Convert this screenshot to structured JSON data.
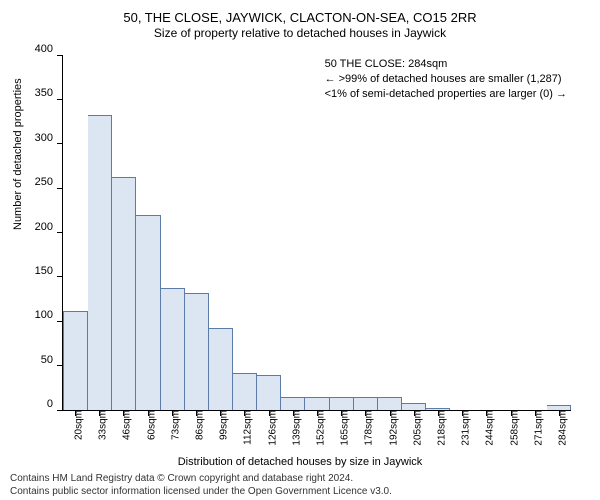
{
  "title": "50, THE CLOSE, JAYWICK, CLACTON-ON-SEA, CO15 2RR",
  "subtitle": "Size of property relative to detached houses in Jaywick",
  "chart": {
    "type": "histogram",
    "bar_fill": "#dce5f2",
    "bar_border": "#5b7ba8",
    "background": "#ffffff",
    "ylim": [
      0,
      400
    ],
    "ytick_step": 50,
    "ylabel": "Number of detached properties",
    "xlabel": "Distribution of detached houses by size in Jaywick",
    "categories": [
      "20sqm",
      "33sqm",
      "46sqm",
      "60sqm",
      "73sqm",
      "86sqm",
      "99sqm",
      "112sqm",
      "126sqm",
      "139sqm",
      "152sqm",
      "165sqm",
      "178sqm",
      "192sqm",
      "205sqm",
      "218sqm",
      "231sqm",
      "244sqm",
      "258sqm",
      "271sqm",
      "284sqm"
    ],
    "values": [
      112,
      332,
      263,
      220,
      138,
      132,
      92,
      42,
      40,
      15,
      15,
      15,
      15,
      15,
      8,
      2,
      0,
      0,
      0,
      0,
      6
    ],
    "label_fontsize": 11,
    "tick_fontsize": 10
  },
  "annotation": {
    "line1": "50 THE CLOSE: 284sqm",
    "line2": "← >99% of detached houses are smaller (1,287)",
    "line3": "<1% of semi-detached properties are larger (0) →"
  },
  "footer": {
    "line1": "Contains HM Land Registry data © Crown copyright and database right 2024.",
    "line2": "Contains public sector information licensed under the Open Government Licence v3.0."
  }
}
